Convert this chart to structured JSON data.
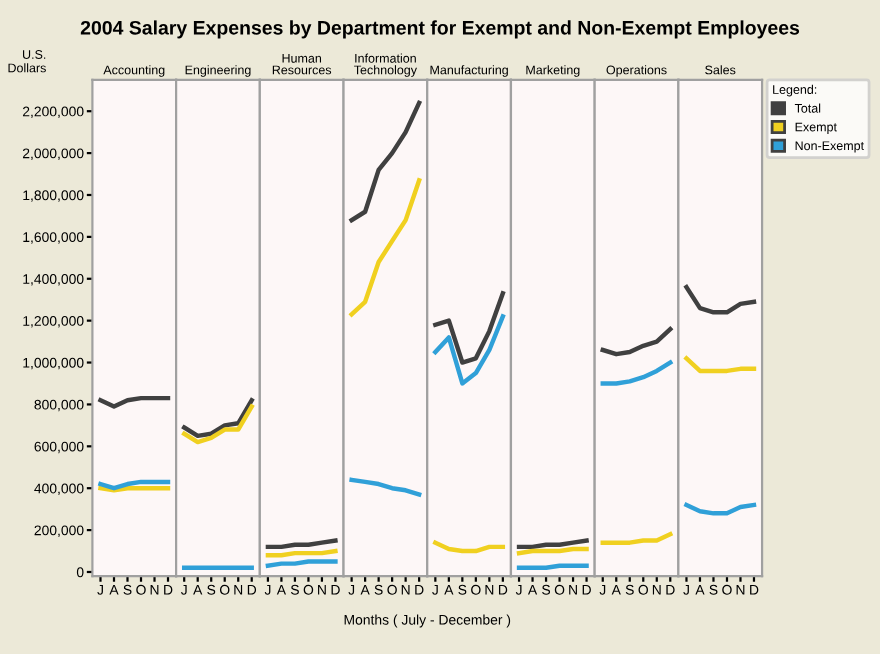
{
  "chart_data": [
    {
      "type": "other",
      "title": "2004 Salary Expenses by Department for Exempt and Non-Exempt Employees",
      "xlabel": "Months ( July - December )"
    },
    {
      "type": "line",
      "title": "Accounting",
      "ylabel": "U.S. Dollars",
      "categories": [
        "J",
        "A",
        "S",
        "O",
        "N",
        "D"
      ],
      "ylim": [
        -20000,
        2350000
      ],
      "yticks": [
        0,
        {
          "value": 200000,
          "label": "200,000"
        },
        {
          "value": 400000,
          "label": "400,000"
        },
        {
          "value": 600000,
          "label": "600,000"
        },
        {
          "value": 800000,
          "label": "800,000"
        },
        {
          "value": 1000000,
          "label": "1,000,000"
        },
        {
          "value": 1200000,
          "label": "1,200,000"
        },
        {
          "value": 1400000,
          "label": "1,400,000"
        },
        {
          "value": 1600000,
          "label": "1,600,000"
        },
        {
          "value": 1800000,
          "label": "1,800,000"
        },
        {
          "value": 2000000,
          "label": "2,000,000"
        },
        {
          "value": 2200000,
          "label": "2,200,000"
        }
      ],
      "series": [
        {
          "color": "#404040",
          "values": [
            820000,
            790000,
            820000,
            830000,
            830000,
            830000
          ]
        },
        {
          "color": "#f0d020",
          "values": [
            400000,
            390000,
            400000,
            400000,
            400000,
            400000
          ]
        },
        {
          "color": "#30a0d8",
          "values": [
            420000,
            400000,
            420000,
            430000,
            430000,
            430000
          ]
        }
      ]
    },
    {
      "type": "line",
      "title": "Engineering",
      "tick_labels": "x",
      "categories": [
        "J",
        "A",
        "S",
        "O",
        "N",
        "D"
      ],
      "ylim": [
        -20000,
        2350000
      ],
      "series": [
        {
          "color": "#404040",
          "values": [
            690000,
            650000,
            660000,
            700000,
            710000,
            820000
          ]
        },
        {
          "color": "#f0d020",
          "values": [
            660000,
            620000,
            640000,
            680000,
            680000,
            790000
          ]
        },
        {
          "color": "#30a0d8",
          "values": [
            20000,
            20000,
            20000,
            20000,
            20000,
            20000
          ]
        }
      ]
    },
    {
      "type": "line",
      "title": "Human\nResources",
      "tick_labels": "x",
      "categories": [
        "J",
        "A",
        "S",
        "O",
        "N",
        "D"
      ],
      "ylim": [
        -20000,
        2350000
      ],
      "series": [
        {
          "color": "#404040",
          "values": [
            120000,
            120000,
            130000,
            130000,
            140000,
            150000
          ]
        },
        {
          "color": "#f0d020",
          "values": [
            80000,
            80000,
            90000,
            90000,
            90000,
            100000
          ]
        },
        {
          "color": "#30a0d8",
          "values": [
            30000,
            40000,
            40000,
            50000,
            50000,
            50000
          ]
        }
      ]
    },
    {
      "type": "line",
      "title": "Information\nTechnology",
      "tick_labels": "x",
      "categories": [
        "J",
        "A",
        "S",
        "O",
        "N",
        "D"
      ],
      "ylim": [
        -20000,
        2350000
      ],
      "series": [
        {
          "color": "#404040",
          "values": [
            1680000,
            1720000,
            1920000,
            2000000,
            2100000,
            2240000
          ]
        },
        {
          "color": "#f0d020",
          "values": [
            1230000,
            1290000,
            1480000,
            1580000,
            1680000,
            1870000
          ]
        },
        {
          "color": "#30a0d8",
          "values": [
            440000,
            430000,
            420000,
            400000,
            390000,
            370000
          ]
        }
      ]
    },
    {
      "type": "line",
      "title": "Manufacturing",
      "tick_labels": "x",
      "categories": [
        "J",
        "A",
        "S",
        "O",
        "N",
        "D"
      ],
      "ylim": [
        -20000,
        2350000
      ],
      "series": [
        {
          "color": "#404040",
          "values": [
            1180000,
            1200000,
            1000000,
            1020000,
            1150000,
            1330000
          ]
        },
        {
          "color": "#f0d020",
          "values": [
            140000,
            110000,
            100000,
            100000,
            120000,
            120000
          ]
        },
        {
          "color": "#30a0d8",
          "values": [
            1050000,
            1120000,
            900000,
            950000,
            1060000,
            1220000
          ]
        }
      ]
    },
    {
      "type": "line",
      "title": "Marketing",
      "tick_labels": "x",
      "categories": [
        "J",
        "A",
        "S",
        "O",
        "N",
        "D"
      ],
      "ylim": [
        -20000,
        2350000
      ],
      "series": [
        {
          "color": "#404040",
          "values": [
            120000,
            120000,
            130000,
            130000,
            140000,
            150000
          ]
        },
        {
          "color": "#f0d020",
          "values": [
            90000,
            100000,
            100000,
            100000,
            110000,
            110000
          ]
        },
        {
          "color": "#30a0d8",
          "values": [
            20000,
            20000,
            20000,
            30000,
            30000,
            30000
          ]
        }
      ]
    },
    {
      "type": "line",
      "title": "Operations",
      "tick_labels": "x",
      "categories": [
        "J",
        "A",
        "S",
        "O",
        "N",
        "D"
      ],
      "ylim": [
        -20000,
        2350000
      ],
      "series": [
        {
          "color": "#404040",
          "values": [
            1060000,
            1040000,
            1050000,
            1080000,
            1100000,
            1160000
          ]
        },
        {
          "color": "#f0d020",
          "values": [
            140000,
            140000,
            140000,
            150000,
            150000,
            180000
          ]
        },
        {
          "color": "#30a0d8",
          "values": [
            900000,
            900000,
            910000,
            930000,
            960000,
            1000000
          ]
        }
      ]
    },
    {
      "type": "line",
      "title": "Sales",
      "tick_labels": "x",
      "legend": "right",
      "legend_title": "Legend:",
      "categories": [
        "J",
        "A",
        "S",
        "O",
        "N",
        "D"
      ],
      "ylim": [
        -20000,
        2350000
      ],
      "series": [
        {
          "name": "Total",
          "color": "#404040",
          "values": [
            1360000,
            1260000,
            1240000,
            1240000,
            1280000,
            1290000
          ]
        },
        {
          "name": "Exempt",
          "color": "#f0d020",
          "values": [
            1020000,
            960000,
            960000,
            960000,
            970000,
            970000
          ]
        },
        {
          "name": "Non-Exempt",
          "color": "#30a0d8",
          "values": [
            320000,
            290000,
            280000,
            280000,
            310000,
            320000
          ]
        }
      ]
    }
  ]
}
